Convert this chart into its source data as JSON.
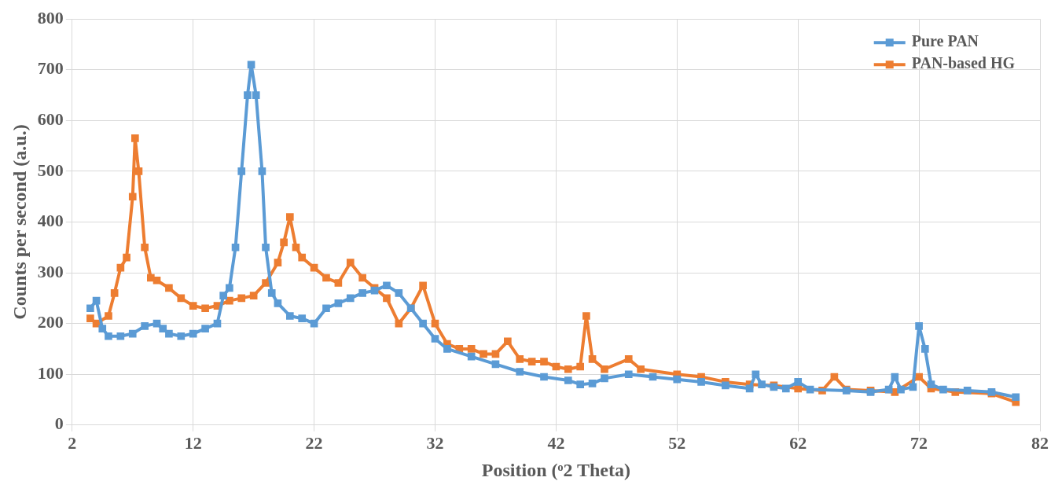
{
  "chart_data": {
    "type": "line",
    "xlabel": "Position (ᵒ2 Theta)",
    "ylabel": "Counts per second (a.u.)",
    "xlim": [
      2,
      82
    ],
    "xticks": [
      2,
      12,
      22,
      32,
      42,
      52,
      62,
      72,
      82
    ],
    "ylim": [
      0,
      800
    ],
    "yticks": [
      0,
      100,
      200,
      300,
      400,
      500,
      600,
      700,
      800
    ],
    "grid": true,
    "legend": "top right",
    "marker": "square",
    "line_style": "solid",
    "series": [
      {
        "name": "Pure PAN",
        "color": "#5b9bd5",
        "x": [
          3.5,
          4,
          4.5,
          5,
          6,
          7,
          8,
          9,
          9.5,
          10,
          11,
          12,
          13,
          14,
          14.5,
          15,
          15.5,
          16,
          16.5,
          16.8,
          17.2,
          17.7,
          18,
          18.5,
          19,
          20,
          21,
          22,
          23,
          24,
          25,
          26,
          27,
          28,
          29,
          30,
          31,
          32,
          33,
          35,
          37,
          39,
          41,
          43,
          44,
          45,
          46,
          48,
          50,
          52,
          54,
          56,
          58,
          58.5,
          59,
          60,
          61,
          62,
          63,
          66,
          68,
          69.5,
          70,
          70.5,
          71.5,
          72,
          72.5,
          73,
          74,
          76,
          78,
          80
        ],
        "values": [
          230,
          245,
          190,
          175,
          175,
          180,
          195,
          200,
          190,
          180,
          175,
          180,
          190,
          200,
          255,
          270,
          350,
          500,
          650,
          710,
          650,
          500,
          350,
          260,
          240,
          215,
          210,
          200,
          230,
          240,
          250,
          260,
          265,
          275,
          260,
          230,
          200,
          170,
          150,
          135,
          120,
          105,
          95,
          88,
          80,
          82,
          92,
          100,
          95,
          90,
          85,
          78,
          72,
          100,
          80,
          75,
          72,
          85,
          70,
          68,
          65,
          70,
          95,
          70,
          75,
          195,
          150,
          80,
          70,
          68,
          65,
          55
        ]
      },
      {
        "name": "PAN-based HG",
        "color": "#ed7d31",
        "x": [
          3.5,
          4,
          5,
          5.5,
          6,
          6.5,
          7,
          7.2,
          7.5,
          8,
          8.5,
          9,
          10,
          11,
          12,
          13,
          14,
          15,
          16,
          17,
          18,
          19,
          19.5,
          20,
          20.5,
          21,
          22,
          23,
          24,
          25,
          26,
          27,
          28,
          29,
          30,
          31,
          32,
          33,
          34,
          35,
          36,
          37,
          38,
          39,
          40,
          41,
          42,
          43,
          44,
          44.5,
          45,
          46,
          48,
          49,
          52,
          54,
          56,
          58,
          60,
          62,
          64,
          65,
          66,
          68,
          70,
          72,
          73,
          75,
          78,
          80
        ],
        "values": [
          210,
          200,
          215,
          260,
          310,
          330,
          450,
          565,
          500,
          350,
          290,
          285,
          270,
          250,
          235,
          230,
          235,
          245,
          250,
          255,
          280,
          320,
          360,
          410,
          350,
          330,
          310,
          290,
          280,
          320,
          290,
          270,
          250,
          200,
          230,
          275,
          200,
          160,
          150,
          150,
          140,
          140,
          165,
          130,
          125,
          125,
          115,
          110,
          115,
          215,
          130,
          110,
          130,
          110,
          100,
          95,
          85,
          80,
          78,
          72,
          68,
          95,
          70,
          68,
          65,
          95,
          72,
          65,
          62,
          45
        ]
      }
    ]
  }
}
